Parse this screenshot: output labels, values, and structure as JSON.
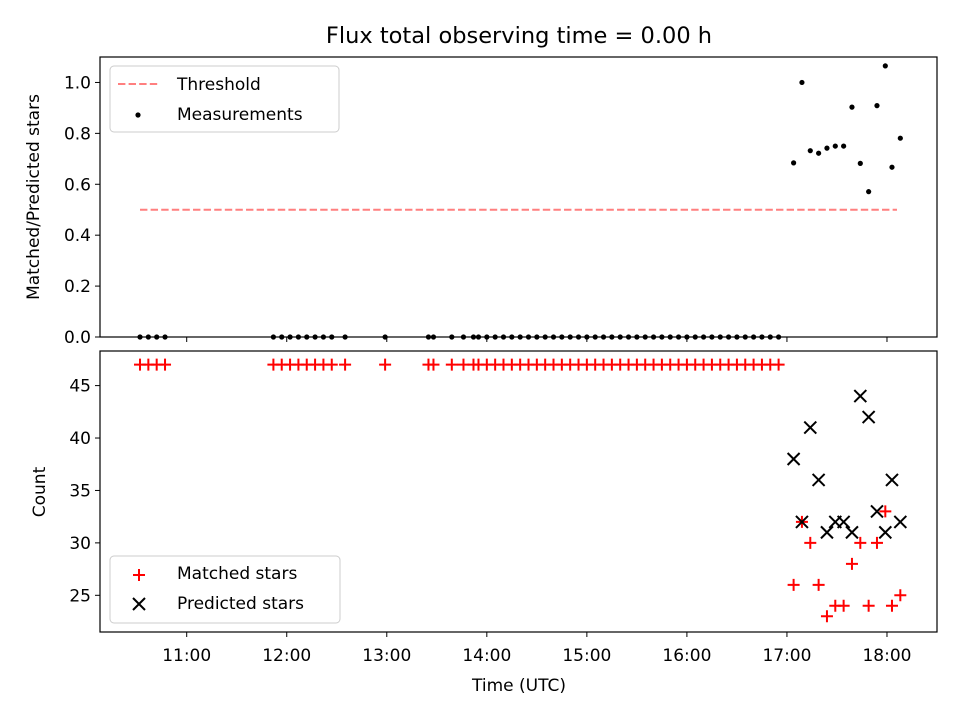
{
  "figure": {
    "title": "Flux total observing time = 0.00 h"
  },
  "colors": {
    "threshold": "#ff7f7f",
    "measurement": "#000000",
    "matched": "#ff0000",
    "predicted": "#000000"
  },
  "chart_data": [
    {
      "type": "scatter",
      "panel": "top",
      "title": "Flux total observing time = 0.00 h",
      "xlabel": "",
      "ylabel": "Matched/Predicted stars",
      "xlim": [
        "10:08",
        "18:30"
      ],
      "ylim": [
        0.0,
        1.1
      ],
      "y_ticks": [
        0.0,
        0.2,
        0.4,
        0.6,
        0.8,
        1.0
      ],
      "y_tick_labels": [
        "0.0",
        "0.2",
        "0.4",
        "0.6",
        "0.8",
        "1.0"
      ],
      "x_ticks": [
        "11:00",
        "12:00",
        "13:00",
        "14:00",
        "15:00",
        "16:00",
        "17:00",
        "18:00"
      ],
      "x_tick_labels_shown": false,
      "legend_position": "top-left",
      "series": [
        {
          "name": "Threshold",
          "kind": "line",
          "style": "dashed",
          "x": [
            "10:32",
            "18:06"
          ],
          "y": [
            0.5,
            0.5
          ]
        },
        {
          "name": "Measurements",
          "kind": "scatter",
          "marker": "dot",
          "zero_times": [
            "10:32",
            "10:37",
            "10:42",
            "10:47",
            "11:52",
            "11:57",
            "12:02",
            "12:07",
            "12:12",
            "12:17",
            "12:22",
            "12:27",
            "12:35",
            "12:59",
            "13:25",
            "13:28",
            "13:39",
            "13:46",
            "13:52",
            "13:55",
            "14:00",
            "14:05",
            "14:10",
            "14:15",
            "14:20",
            "14:25",
            "14:30",
            "14:35",
            "14:40",
            "14:45",
            "14:50",
            "14:55",
            "15:00",
            "15:05",
            "15:10",
            "15:15",
            "15:20",
            "15:25",
            "15:30",
            "15:35",
            "15:40",
            "15:45",
            "15:50",
            "15:55",
            "16:00",
            "16:05",
            "16:10",
            "16:15",
            "16:20",
            "16:25",
            "16:30",
            "16:35",
            "16:40",
            "16:45",
            "16:50",
            "16:55"
          ],
          "points": [
            {
              "x": "17:04",
              "y": 0.684
            },
            {
              "x": "17:09",
              "y": 1.0
            },
            {
              "x": "17:14",
              "y": 0.732
            },
            {
              "x": "17:19",
              "y": 0.722
            },
            {
              "x": "17:24",
              "y": 0.742
            },
            {
              "x": "17:29",
              "y": 0.75
            },
            {
              "x": "17:34",
              "y": 0.75
            },
            {
              "x": "17:39",
              "y": 0.903
            },
            {
              "x": "17:44",
              "y": 0.682
            },
            {
              "x": "17:49",
              "y": 0.571
            },
            {
              "x": "17:54",
              "y": 0.909
            },
            {
              "x": "17:59",
              "y": 1.065
            },
            {
              "x": "18:03",
              "y": 0.667
            },
            {
              "x": "18:08",
              "y": 0.781
            }
          ]
        }
      ]
    },
    {
      "type": "scatter",
      "panel": "bottom",
      "xlabel": "Time (UTC)",
      "ylabel": "Count",
      "xlim": [
        "10:08",
        "18:30"
      ],
      "ylim": [
        21.5,
        48.3
      ],
      "y_ticks": [
        25,
        30,
        35,
        40,
        45
      ],
      "y_tick_labels": [
        "25",
        "30",
        "35",
        "40",
        "45"
      ],
      "x_ticks": [
        "11:00",
        "12:00",
        "13:00",
        "14:00",
        "15:00",
        "16:00",
        "17:00",
        "18:00"
      ],
      "x_tick_labels": [
        "11:00",
        "12:00",
        "13:00",
        "14:00",
        "15:00",
        "16:00",
        "17:00",
        "18:00"
      ],
      "legend_position": "bottom-left",
      "series": [
        {
          "name": "Matched stars",
          "marker": "plus",
          "zero_prediction_times": [
            "10:32",
            "10:37",
            "10:42",
            "10:47",
            "11:52",
            "11:57",
            "12:02",
            "12:07",
            "12:12",
            "12:17",
            "12:22",
            "12:27",
            "12:35",
            "12:59",
            "13:25",
            "13:28",
            "13:39",
            "13:46",
            "13:52",
            "13:55",
            "14:00",
            "14:05",
            "14:10",
            "14:15",
            "14:20",
            "14:25",
            "14:30",
            "14:35",
            "14:40",
            "14:45",
            "14:50",
            "14:55",
            "15:00",
            "15:05",
            "15:10",
            "15:15",
            "15:20",
            "15:25",
            "15:30",
            "15:35",
            "15:40",
            "15:45",
            "15:50",
            "15:55",
            "16:00",
            "16:05",
            "16:10",
            "16:15",
            "16:20",
            "16:25",
            "16:30",
            "16:35",
            "16:40",
            "16:45",
            "16:50",
            "16:55"
          ],
          "zero_prediction_value": 47,
          "points": [
            {
              "x": "17:04",
              "y": 26
            },
            {
              "x": "17:09",
              "y": 32
            },
            {
              "x": "17:14",
              "y": 30
            },
            {
              "x": "17:19",
              "y": 26
            },
            {
              "x": "17:24",
              "y": 23
            },
            {
              "x": "17:29",
              "y": 24
            },
            {
              "x": "17:34",
              "y": 24
            },
            {
              "x": "17:39",
              "y": 28
            },
            {
              "x": "17:44",
              "y": 30
            },
            {
              "x": "17:49",
              "y": 24
            },
            {
              "x": "17:54",
              "y": 30
            },
            {
              "x": "17:59",
              "y": 33
            },
            {
              "x": "18:03",
              "y": 24
            },
            {
              "x": "18:08",
              "y": 25
            }
          ]
        },
        {
          "name": "Predicted stars",
          "marker": "x",
          "points": [
            {
              "x": "17:04",
              "y": 38
            },
            {
              "x": "17:09",
              "y": 32
            },
            {
              "x": "17:14",
              "y": 41
            },
            {
              "x": "17:19",
              "y": 36
            },
            {
              "x": "17:24",
              "y": 31
            },
            {
              "x": "17:29",
              "y": 32
            },
            {
              "x": "17:34",
              "y": 32
            },
            {
              "x": "17:39",
              "y": 31
            },
            {
              "x": "17:44",
              "y": 44
            },
            {
              "x": "17:49",
              "y": 42
            },
            {
              "x": "17:54",
              "y": 33
            },
            {
              "x": "17:59",
              "y": 31
            },
            {
              "x": "18:03",
              "y": 36
            },
            {
              "x": "18:08",
              "y": 32
            }
          ]
        }
      ]
    }
  ]
}
